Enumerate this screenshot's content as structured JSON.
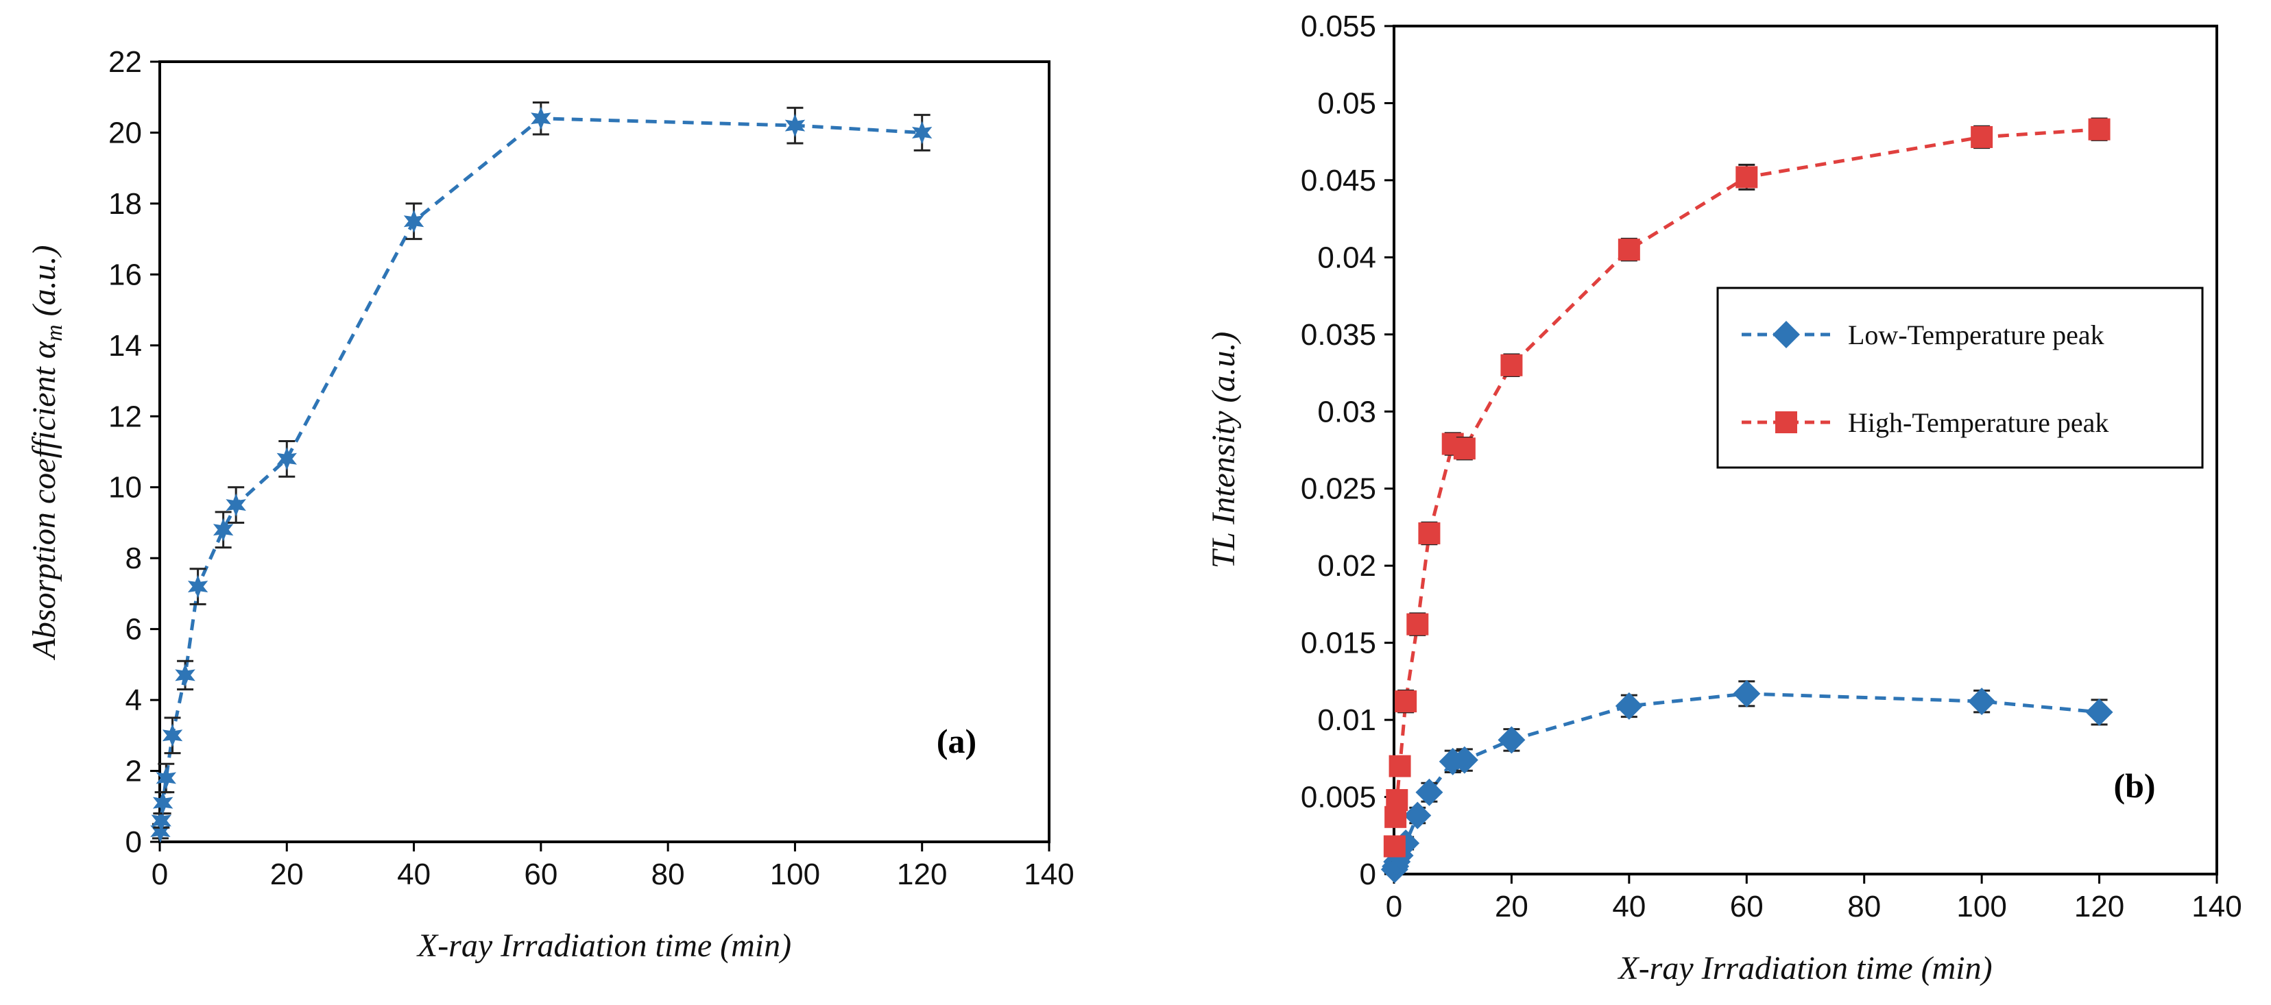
{
  "chart_data": [
    {
      "type": "line",
      "panel_label": "(a)",
      "title": "",
      "xlabel": "X-ray Irradiation time (min)",
      "ylabel_main": "Absorption coefficient ",
      "ylabel_symbol": "α",
      "ylabel_sub": "m",
      "ylabel_units": " (a.u.)",
      "xlim": [
        0,
        140
      ],
      "ylim": [
        0,
        22
      ],
      "xticks": [
        "0",
        "20",
        "40",
        "60",
        "80",
        "100",
        "120",
        "140"
      ],
      "yticks": [
        "0",
        "2",
        "4",
        "6",
        "8",
        "10",
        "12",
        "14",
        "16",
        "18",
        "20",
        "22"
      ],
      "grid": false,
      "legend": "none",
      "series": [
        {
          "name": "Absorption coefficient",
          "color": "#2E75B6",
          "marker": "star",
          "line_style": "dashed",
          "x": [
            0.1,
            0.25,
            0.5,
            1,
            2,
            4,
            6,
            10,
            12,
            20,
            40,
            60,
            100,
            120
          ],
          "y": [
            0.3,
            0.6,
            1.1,
            1.8,
            3.0,
            4.7,
            7.2,
            8.8,
            9.5,
            10.8,
            17.5,
            20.4,
            20.2,
            20.0
          ],
          "err": [
            0.2,
            0.2,
            0.3,
            0.4,
            0.5,
            0.4,
            0.5,
            0.5,
            0.5,
            0.5,
            0.5,
            0.45,
            0.5,
            0.5
          ]
        }
      ]
    },
    {
      "type": "line",
      "panel_label": "(b)",
      "title": "",
      "xlabel": "X-ray Irradiation time (min)",
      "ylabel_main": "TL Intensity",
      "ylabel_units": " (a.u.)",
      "xlim": [
        0,
        140
      ],
      "ylim": [
        0,
        0.055
      ],
      "xticks": [
        "0",
        "20",
        "40",
        "60",
        "80",
        "100",
        "120",
        "140"
      ],
      "yticks": [
        "0",
        "0.005",
        "0.01",
        "0.015",
        "0.02",
        "0.025",
        "0.03",
        "0.035",
        "0.04",
        "0.045",
        "0.05",
        "0.055"
      ],
      "grid": false,
      "legend": "center-right",
      "series": [
        {
          "name": "Low-Temperature peak",
          "color": "#2E75B6",
          "marker": "diamond",
          "line_style": "dashed",
          "x": [
            0.1,
            0.25,
            0.5,
            1,
            2,
            4,
            6,
            10,
            12,
            20,
            40,
            60,
            100,
            120
          ],
          "y": [
            0.0003,
            0.0005,
            0.0008,
            0.0012,
            0.002,
            0.0038,
            0.0053,
            0.0073,
            0.0074,
            0.0087,
            0.0109,
            0.0117,
            0.0112,
            0.0105
          ],
          "err": [
            0.0002,
            0.0002,
            0.0002,
            0.0003,
            0.0004,
            0.0005,
            0.0006,
            0.0007,
            0.0007,
            0.0007,
            0.0007,
            0.0008,
            0.0007,
            0.0008
          ]
        },
        {
          "name": "High-Temperature peak",
          "color": "#E0403E",
          "marker": "square",
          "line_style": "dashed",
          "x": [
            0.1,
            0.25,
            0.5,
            1,
            2,
            4,
            6,
            10,
            12,
            20,
            40,
            60,
            100,
            120
          ],
          "y": [
            0.0018,
            0.0037,
            0.0048,
            0.007,
            0.0112,
            0.0162,
            0.0221,
            0.0279,
            0.0276,
            0.033,
            0.0405,
            0.0452,
            0.0478,
            0.0483
          ],
          "err": [
            0.0003,
            0.0004,
            0.0005,
            0.0006,
            0.0007,
            0.0007,
            0.0007,
            0.0007,
            0.0007,
            0.0007,
            0.0007,
            0.0008,
            0.0007,
            0.0007
          ]
        }
      ]
    }
  ]
}
